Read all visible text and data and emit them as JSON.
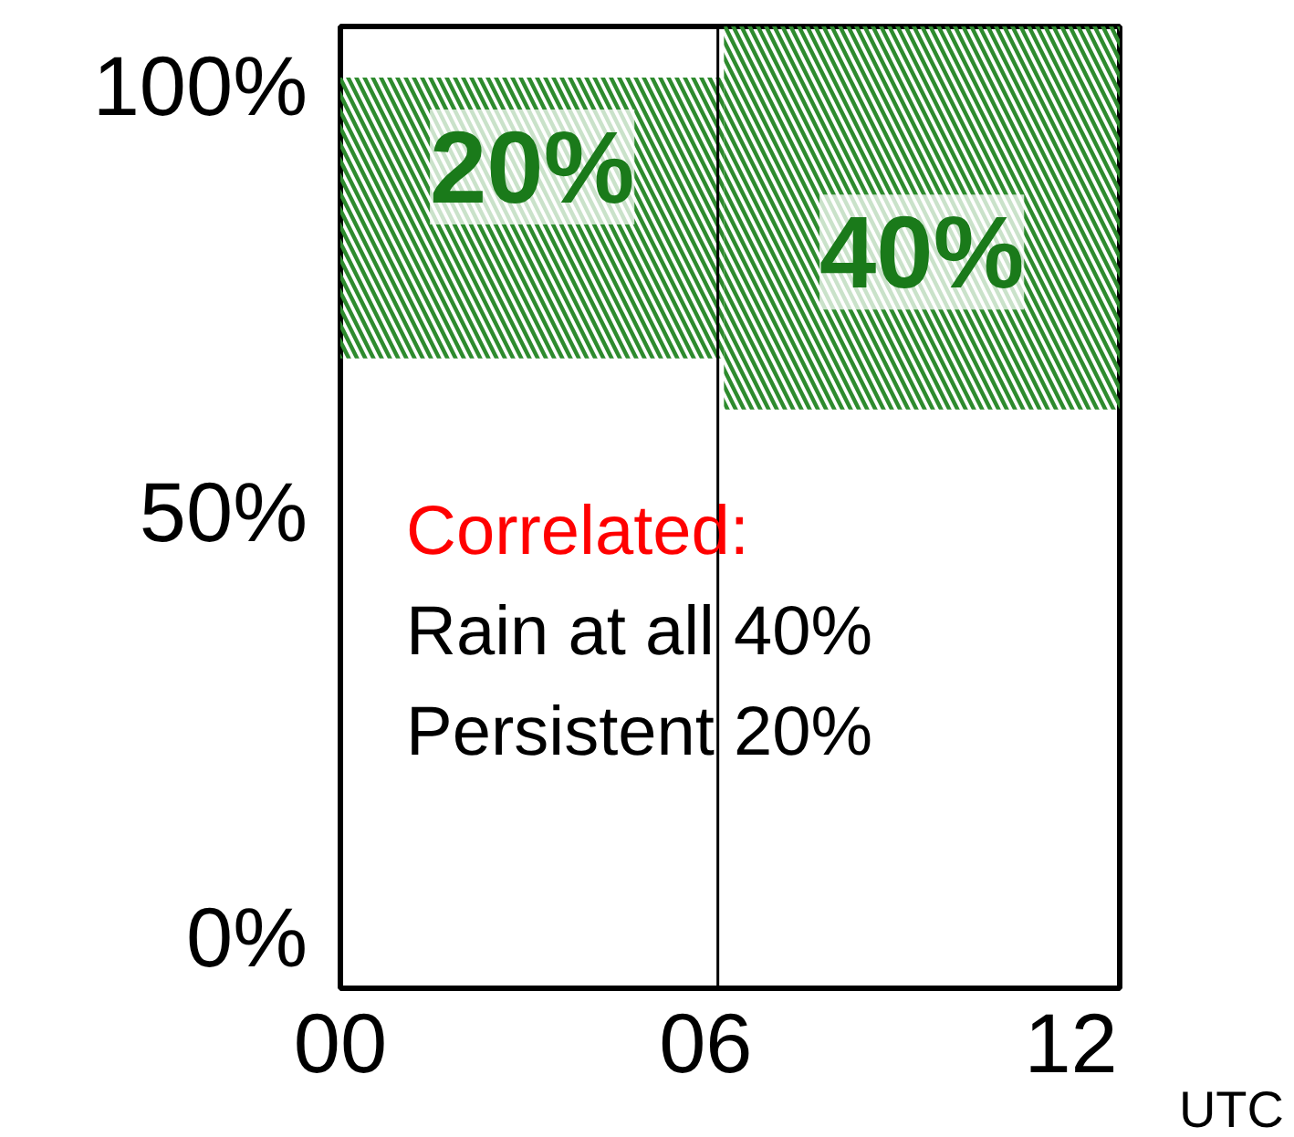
{
  "chart_data": {
    "type": "bar",
    "x": [
      3.1,
      9.5
    ],
    "base": [
      68,
      62
    ],
    "values": [
      33,
      45
    ],
    "color": "#2e8b2e",
    "xlim": [
      0,
      12.8
    ],
    "ylim": [
      -6,
      107
    ],
    "xticks": [
      {
        "value": 0,
        "label": "00"
      },
      {
        "value": 6,
        "label": "06"
      },
      {
        "value": 12,
        "label": "12"
      }
    ],
    "yticks": [
      {
        "value": 0,
        "label": "0%"
      },
      {
        "value": 50,
        "label": "50%"
      },
      {
        "value": 100,
        "label": "100%"
      }
    ],
    "xlabel": "UTC",
    "ref_lines": [
      {
        "axis": "x",
        "value": 6.2,
        "color": "#000000"
      }
    ],
    "annotations": [
      "Correlated:",
      "Rain at all 40%",
      "Persistent 20%",
      "20%",
      "40%"
    ],
    "grid": false
  }
}
